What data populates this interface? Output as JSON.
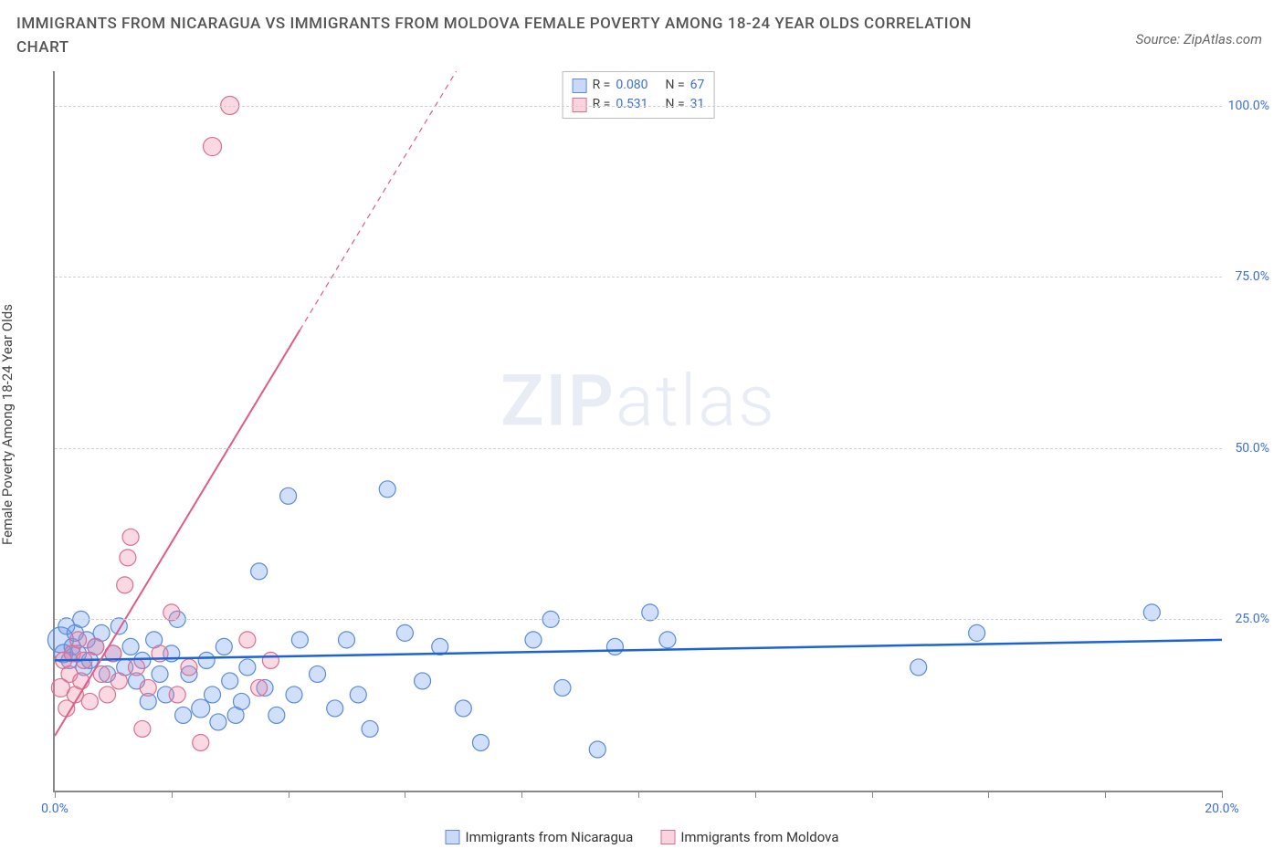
{
  "title": "IMMIGRANTS FROM NICARAGUA VS IMMIGRANTS FROM MOLDOVA FEMALE POVERTY AMONG 18-24 YEAR OLDS CORRELATION CHART",
  "source": "Source: ZipAtlas.com",
  "y_axis_label": "Female Poverty Among 18-24 Year Olds",
  "watermark_a": "ZIP",
  "watermark_b": "atlas",
  "chart": {
    "type": "scatter",
    "x_range": [
      0,
      20
    ],
    "y_range": [
      0,
      105
    ],
    "x_ticks": [
      0,
      2,
      4,
      6,
      8,
      10,
      12,
      14,
      16,
      18,
      20
    ],
    "x_tick_labels": {
      "0": "0.0%",
      "20": "20.0%"
    },
    "y_ticks": [
      25,
      50,
      75,
      100
    ],
    "y_tick_labels": {
      "25": "25.0%",
      "50": "50.0%",
      "75": "75.0%",
      "100": "100.0%"
    },
    "grid_color": "#d8d8d8",
    "background_color": "#ffffff",
    "series": [
      {
        "name": "Immigrants from Nicaragua",
        "color_fill": "rgba(99,148,238,0.30)",
        "color_stroke": "#5b8bd8",
        "marker_radius": 9,
        "R": "0.080",
        "N": "67",
        "trend": {
          "color": "#1e63d6",
          "width": 2.5,
          "y_at_x0": 19.0,
          "y_at_x20": 22.0,
          "dashed_from_x": null
        },
        "points": [
          [
            0.1,
            22,
            14
          ],
          [
            0.15,
            20,
            10
          ],
          [
            0.2,
            24,
            9
          ],
          [
            0.25,
            19,
            9
          ],
          [
            0.3,
            21,
            9
          ],
          [
            0.35,
            23,
            9
          ],
          [
            0.4,
            20,
            9
          ],
          [
            0.45,
            25,
            9
          ],
          [
            0.5,
            18,
            9
          ],
          [
            0.55,
            22,
            9
          ],
          [
            0.6,
            19,
            9
          ],
          [
            0.7,
            21,
            9
          ],
          [
            0.8,
            23,
            9
          ],
          [
            0.9,
            17,
            9
          ],
          [
            1.0,
            20,
            9
          ],
          [
            1.1,
            24,
            9
          ],
          [
            1.2,
            18,
            9
          ],
          [
            1.3,
            21,
            9
          ],
          [
            1.4,
            16,
            9
          ],
          [
            1.5,
            19,
            9
          ],
          [
            1.6,
            13,
            9
          ],
          [
            1.7,
            22,
            9
          ],
          [
            1.8,
            17,
            9
          ],
          [
            1.9,
            14,
            9
          ],
          [
            2.0,
            20,
            9
          ],
          [
            2.1,
            25,
            9
          ],
          [
            2.2,
            11,
            9
          ],
          [
            2.3,
            17,
            9
          ],
          [
            2.5,
            12,
            10
          ],
          [
            2.6,
            19,
            9
          ],
          [
            2.7,
            14,
            9
          ],
          [
            2.8,
            10,
            9
          ],
          [
            2.9,
            21,
            9
          ],
          [
            3.0,
            16,
            9
          ],
          [
            3.1,
            11,
            9
          ],
          [
            3.2,
            13,
            9
          ],
          [
            3.3,
            18,
            9
          ],
          [
            3.5,
            32,
            9
          ],
          [
            3.6,
            15,
            9
          ],
          [
            3.8,
            11,
            9
          ],
          [
            4.0,
            43,
            9
          ],
          [
            4.1,
            14,
            9
          ],
          [
            4.2,
            22,
            9
          ],
          [
            4.5,
            17,
            9
          ],
          [
            4.8,
            12,
            9
          ],
          [
            5.0,
            22,
            9
          ],
          [
            5.2,
            14,
            9
          ],
          [
            5.4,
            9,
            9
          ],
          [
            5.7,
            44,
            9
          ],
          [
            6.0,
            23,
            9
          ],
          [
            6.3,
            16,
            9
          ],
          [
            6.6,
            21,
            9
          ],
          [
            7.0,
            12,
            9
          ],
          [
            7.3,
            7,
            9
          ],
          [
            8.2,
            22,
            9
          ],
          [
            8.5,
            25,
            9
          ],
          [
            8.7,
            15,
            9
          ],
          [
            9.3,
            6,
            9
          ],
          [
            9.6,
            21,
            9
          ],
          [
            10.2,
            26,
            9
          ],
          [
            10.5,
            22,
            9
          ],
          [
            14.8,
            18,
            9
          ],
          [
            15.8,
            23,
            9
          ],
          [
            18.8,
            26,
            9
          ]
        ]
      },
      {
        "name": "Immigrants from Moldova",
        "color_fill": "rgba(240,130,160,0.30)",
        "color_stroke": "#d87094",
        "marker_radius": 9,
        "R": "0.531",
        "N": "31",
        "trend": {
          "color": "#e05a8a",
          "width": 2.0,
          "y_at_x0": 8.0,
          "y_at_x20": 290.0,
          "dashed_from_x": 4.2
        },
        "points": [
          [
            0.1,
            15,
            10
          ],
          [
            0.15,
            19,
            9
          ],
          [
            0.2,
            12,
            9
          ],
          [
            0.25,
            17,
            9
          ],
          [
            0.3,
            20,
            9
          ],
          [
            0.35,
            14,
            9
          ],
          [
            0.4,
            22,
            9
          ],
          [
            0.45,
            16,
            9
          ],
          [
            0.5,
            19,
            9
          ],
          [
            0.6,
            13,
            9
          ],
          [
            0.7,
            21,
            9
          ],
          [
            0.8,
            17,
            9
          ],
          [
            0.9,
            14,
            9
          ],
          [
            1.0,
            20,
            9
          ],
          [
            1.1,
            16,
            9
          ],
          [
            1.2,
            30,
            9
          ],
          [
            1.25,
            34,
            9
          ],
          [
            1.3,
            37,
            9
          ],
          [
            1.4,
            18,
            9
          ],
          [
            1.5,
            9,
            9
          ],
          [
            1.6,
            15,
            9
          ],
          [
            1.8,
            20,
            9
          ],
          [
            2.0,
            26,
            9
          ],
          [
            2.1,
            14,
            9
          ],
          [
            2.3,
            18,
            9
          ],
          [
            2.5,
            7,
            9
          ],
          [
            2.7,
            94,
            10
          ],
          [
            3.0,
            100,
            10
          ],
          [
            3.3,
            22,
            9
          ],
          [
            3.5,
            15,
            9
          ],
          [
            3.7,
            19,
            9
          ]
        ]
      }
    ]
  },
  "stats_box_labels": {
    "R": "R =",
    "N": "N ="
  },
  "bottom_legend": [
    {
      "swatch": "blue",
      "label": "Immigrants from Nicaragua"
    },
    {
      "swatch": "pink",
      "label": "Immigrants from Moldova"
    }
  ]
}
